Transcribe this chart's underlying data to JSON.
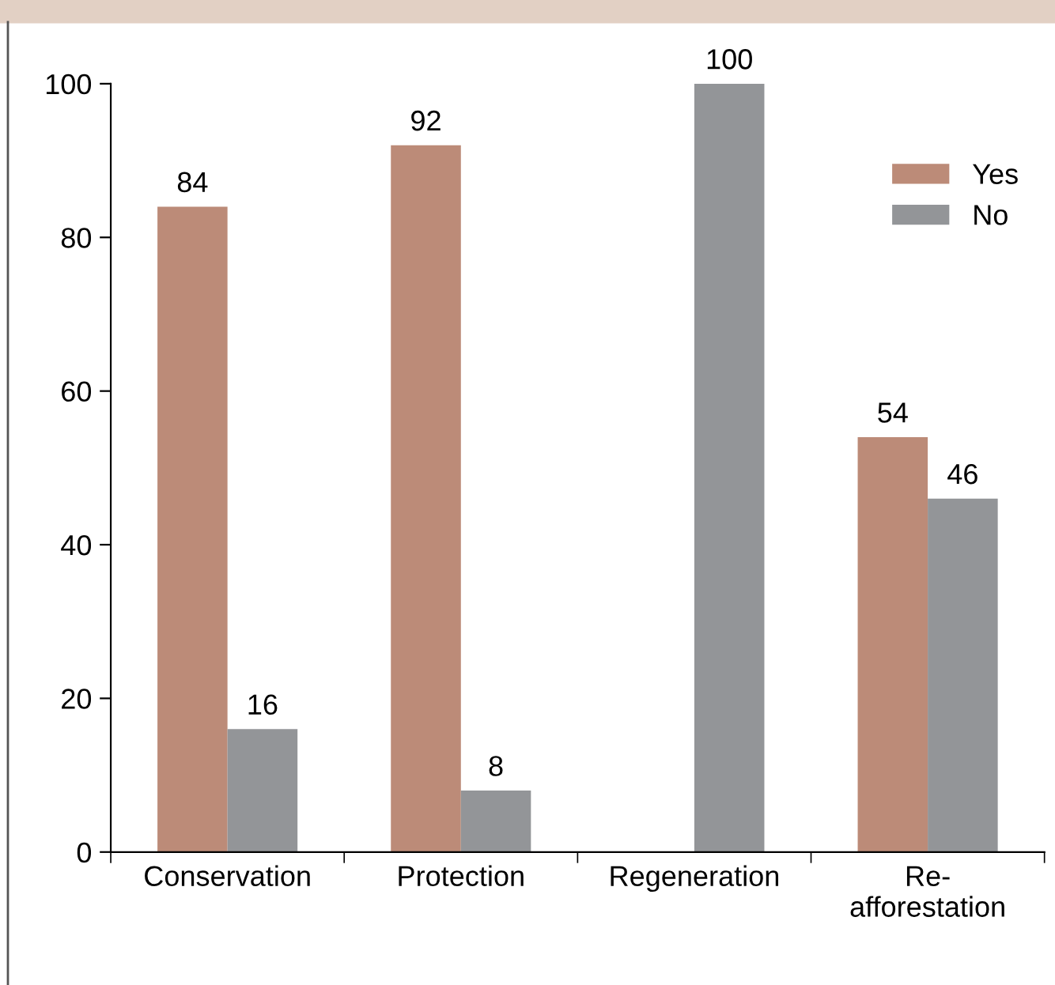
{
  "chart_data": {
    "type": "bar",
    "categories": [
      "Conservation",
      "Protection",
      "Regeneration",
      "Re-\nafforestation"
    ],
    "series": [
      {
        "name": "Yes",
        "color": "#bc8b78",
        "values": [
          84,
          92,
          0,
          54
        ],
        "value_labels": [
          "84",
          "92",
          null,
          "54"
        ]
      },
      {
        "name": "No",
        "color": "#939598",
        "values": [
          16,
          8,
          100,
          46
        ],
        "value_labels": [
          "16",
          "8",
          "100",
          "46"
        ]
      }
    ],
    "ylim": [
      0,
      100
    ],
    "yticks": [
      0,
      20,
      40,
      60,
      80,
      100
    ],
    "grid": false,
    "legend": "top right"
  }
}
